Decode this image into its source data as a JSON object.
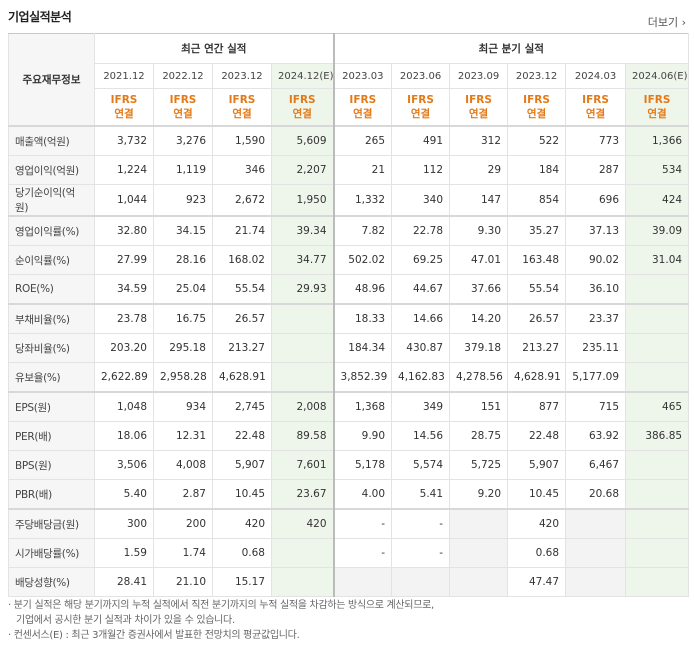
{
  "title": "기업실적분석",
  "more_label": "더보기",
  "annual_header": "최근 연간 실적",
  "quarter_header": "최근 분기 실적",
  "corner_label": "주요재무정보",
  "periods": [
    "2021.12",
    "2022.12",
    "2023.12",
    "2024.12(E)",
    "2023.03",
    "2023.06",
    "2023.09",
    "2023.12",
    "2024.03",
    "2024.06(E)"
  ],
  "standards": [
    [
      "IFRS",
      "연결"
    ],
    [
      "IFRS",
      "연결"
    ],
    [
      "IFRS",
      "연결"
    ],
    [
      "IFRS",
      "연결"
    ],
    [
      "IFRS",
      "연결"
    ],
    [
      "IFRS",
      "연결"
    ],
    [
      "IFRS",
      "연결"
    ],
    [
      "IFRS",
      "연결"
    ],
    [
      "IFRS",
      "연결"
    ],
    [
      "IFRS",
      "연결"
    ]
  ],
  "rows": [
    {
      "label": "매출액(억원)",
      "values": [
        "3,732",
        "3,276",
        "1,590",
        "5,609",
        "265",
        "491",
        "312",
        "522",
        "773",
        "1,366"
      ]
    },
    {
      "label": "영업이익(억원)",
      "values": [
        "1,224",
        "1,119",
        "346",
        "2,207",
        "21",
        "112",
        "29",
        "184",
        "287",
        "534"
      ]
    },
    {
      "label": "당기순이익(억원)",
      "values": [
        "1,044",
        "923",
        "2,672",
        "1,950",
        "1,332",
        "340",
        "147",
        "854",
        "696",
        "424"
      ]
    },
    {
      "label": "영업이익률(%)",
      "values": [
        "32.80",
        "34.15",
        "21.74",
        "39.34",
        "7.82",
        "22.78",
        "9.30",
        "35.27",
        "37.13",
        "39.09"
      ]
    },
    {
      "label": "순이익률(%)",
      "values": [
        "27.99",
        "28.16",
        "168.02",
        "34.77",
        "502.02",
        "69.25",
        "47.01",
        "163.48",
        "90.02",
        "31.04"
      ]
    },
    {
      "label": "ROE(%)",
      "values": [
        "34.59",
        "25.04",
        "55.54",
        "29.93",
        "48.96",
        "44.67",
        "37.66",
        "55.54",
        "36.10",
        ""
      ]
    },
    {
      "label": "부채비율(%)",
      "values": [
        "23.78",
        "16.75",
        "26.57",
        "",
        "18.33",
        "14.66",
        "14.20",
        "26.57",
        "23.37",
        ""
      ]
    },
    {
      "label": "당좌비율(%)",
      "values": [
        "203.20",
        "295.18",
        "213.27",
        "",
        "184.34",
        "430.87",
        "379.18",
        "213.27",
        "235.11",
        ""
      ]
    },
    {
      "label": "유보율(%)",
      "values": [
        "2,622.89",
        "2,958.28",
        "4,628.91",
        "",
        "3,852.39",
        "4,162.83",
        "4,278.56",
        "4,628.91",
        "5,177.09",
        ""
      ]
    },
    {
      "label": "EPS(원)",
      "values": [
        "1,048",
        "934",
        "2,745",
        "2,008",
        "1,368",
        "349",
        "151",
        "877",
        "715",
        "465"
      ]
    },
    {
      "label": "PER(배)",
      "values": [
        "18.06",
        "12.31",
        "22.48",
        "89.58",
        "9.90",
        "14.56",
        "28.75",
        "22.48",
        "63.92",
        "386.85"
      ]
    },
    {
      "label": "BPS(원)",
      "values": [
        "3,506",
        "4,008",
        "5,907",
        "7,601",
        "5,178",
        "5,574",
        "5,725",
        "5,907",
        "6,467",
        ""
      ]
    },
    {
      "label": "PBR(배)",
      "values": [
        "5.40",
        "2.87",
        "10.45",
        "23.67",
        "4.00",
        "5.41",
        "9.20",
        "10.45",
        "20.68",
        ""
      ]
    },
    {
      "label": "주당배당금(원)",
      "values": [
        "300",
        "200",
        "420",
        "420",
        "-",
        "-",
        "",
        "420",
        "",
        ""
      ]
    },
    {
      "label": "시가배당률(%)",
      "values": [
        "1.59",
        "1.74",
        "0.68",
        "",
        "-",
        "-",
        "",
        "0.68",
        "",
        ""
      ]
    },
    {
      "label": "배당성향(%)",
      "values": [
        "28.41",
        "21.10",
        "15.17",
        "",
        "",
        "",
        "",
        "47.47",
        "",
        ""
      ]
    }
  ],
  "footnotes": [
    "분기 실적은 해당 분기까지의 누적 실적에서 직전 분기까지의 누적 실적을 차감하는 방식으로 계산되므로,",
    "기업에서 공시한 분기 실적과 차이가 있을 수 있습니다.",
    "컨센서스(E) : 최근 3개월간 증권사에서 발표한 전망치의 평균값입니다."
  ]
}
